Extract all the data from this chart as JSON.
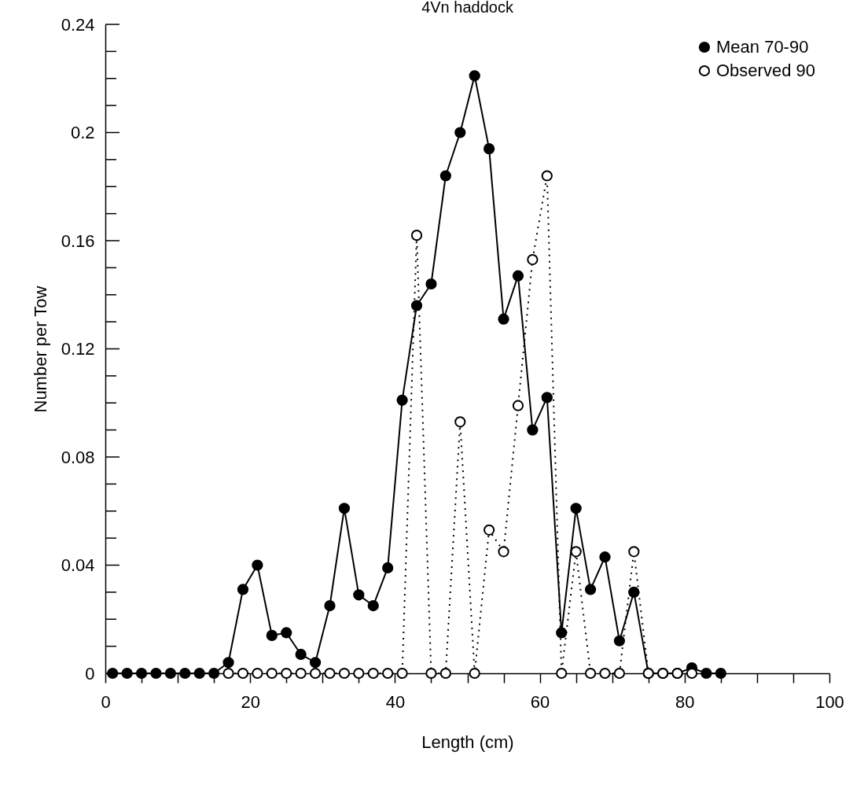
{
  "chart_data": {
    "type": "line",
    "title": "4Vn haddock",
    "xlabel": "Length (cm)",
    "ylabel": "Number per Tow",
    "series": [
      {
        "name": "Mean 70-90",
        "color": "#000000",
        "line_style": "solid",
        "marker": "circle",
        "x": [
          1,
          3,
          5,
          7,
          9,
          11,
          13,
          15,
          17,
          19,
          21,
          23,
          25,
          27,
          29,
          31,
          33,
          35,
          37,
          39,
          41,
          43,
          45,
          47,
          49,
          51,
          53,
          55,
          57,
          59,
          61,
          63,
          65,
          67,
          69,
          71,
          73,
          75,
          77,
          79,
          81,
          83,
          85
        ],
        "values": [
          0,
          0,
          0,
          0,
          0,
          0,
          0,
          0,
          0.004,
          0.031,
          0.04,
          0.014,
          0.015,
          0.007,
          0.004,
          0.025,
          0.061,
          0.029,
          0.025,
          0.039,
          0.101,
          0.136,
          0.144,
          0.184,
          0.2,
          0.221,
          0.194,
          0.131,
          0.147,
          0.09,
          0.102,
          0.015,
          0.061,
          0.031,
          0.043,
          0.012,
          0.03,
          0,
          0,
          0,
          0.002,
          0,
          0
        ]
      },
      {
        "name": "Observed 90",
        "color": "#000000",
        "line_style": "dotted",
        "marker": "circle",
        "x": [
          17,
          19,
          21,
          23,
          25,
          27,
          29,
          31,
          33,
          35,
          37,
          39,
          41,
          43,
          45,
          47,
          49,
          51,
          53,
          55,
          57,
          59,
          61,
          63,
          65,
          67,
          69,
          71,
          73,
          75,
          77,
          79,
          81
        ],
        "values": [
          0,
          0,
          0,
          0,
          0,
          0,
          0,
          0,
          0,
          0,
          0,
          0,
          0,
          0.162,
          0,
          0,
          0.093,
          0,
          0.053,
          0.045,
          0.099,
          0.153,
          0.184,
          0,
          0.045,
          0,
          0,
          0,
          0.045,
          0,
          0,
          0,
          0
        ]
      }
    ],
    "xlim": [
      0,
      100
    ],
    "xticks": [
      0,
      {
        "value": 5,
        "label": null
      },
      20,
      {
        "value": 10,
        "label": null
      },
      {
        "value": 15,
        "label": null
      },
      {
        "value": 25,
        "label": null
      },
      {
        "value": 30,
        "label": null
      },
      {
        "value": 35,
        "label": null
      },
      40,
      {
        "value": 45,
        "label": null
      },
      {
        "value": 50,
        "label": null
      },
      {
        "value": 55,
        "label": null
      },
      60,
      {
        "value": 65,
        "label": null
      },
      {
        "value": 70,
        "label": null
      },
      {
        "value": 75,
        "label": null
      },
      80,
      {
        "value": 85,
        "label": null
      },
      {
        "value": 90,
        "label": null
      },
      {
        "value": 95,
        "label": null
      },
      100
    ],
    "ylim": [
      0,
      0.24
    ],
    "yticks": [
      0,
      {
        "value": 0.01,
        "label": null
      },
      {
        "value": 0.02,
        "label": null
      },
      {
        "value": 0.03,
        "label": null
      },
      0.04,
      {
        "value": 0.05,
        "label": null
      },
      {
        "value": 0.06,
        "label": null
      },
      {
        "value": 0.07,
        "label": null
      },
      0.08,
      {
        "value": 0.09,
        "label": null
      },
      {
        "value": 0.1,
        "label": null
      },
      {
        "value": 0.11,
        "label": null
      },
      0.12,
      {
        "value": 0.13,
        "label": null
      },
      {
        "value": 0.14,
        "label": null
      },
      {
        "value": 0.15,
        "label": null
      },
      0.16,
      {
        "value": 0.17,
        "label": null
      },
      {
        "value": 0.18,
        "label": null
      },
      {
        "value": 0.19,
        "label": null
      },
      0.2,
      {
        "value": 0.21,
        "label": null
      },
      {
        "value": 0.22,
        "label": null
      },
      {
        "value": 0.23,
        "label": null
      },
      0.24
    ],
    "grid": false,
    "legend": "top right"
  }
}
